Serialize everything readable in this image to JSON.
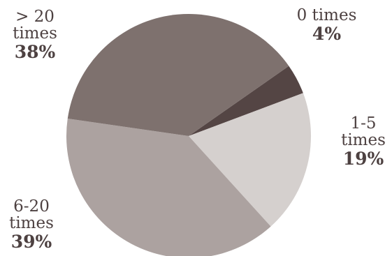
{
  "chart_data": {
    "type": "pie",
    "slices": [
      {
        "label_line1": "0 times",
        "label_line2": "",
        "percent_label": "4%",
        "value": 4,
        "color": "#544544"
      },
      {
        "label_line1": "1-5",
        "label_line2": "times",
        "percent_label": "19%",
        "value": 19,
        "color": "#d5d0ce"
      },
      {
        "label_line1": "6-20",
        "label_line2": "times",
        "percent_label": "39%",
        "value": 39,
        "color": "#aca2a0"
      },
      {
        "label_line1": "> 20",
        "label_line2": "times",
        "percent_label": "38%",
        "value": 38,
        "color": "#7e716e"
      }
    ]
  }
}
